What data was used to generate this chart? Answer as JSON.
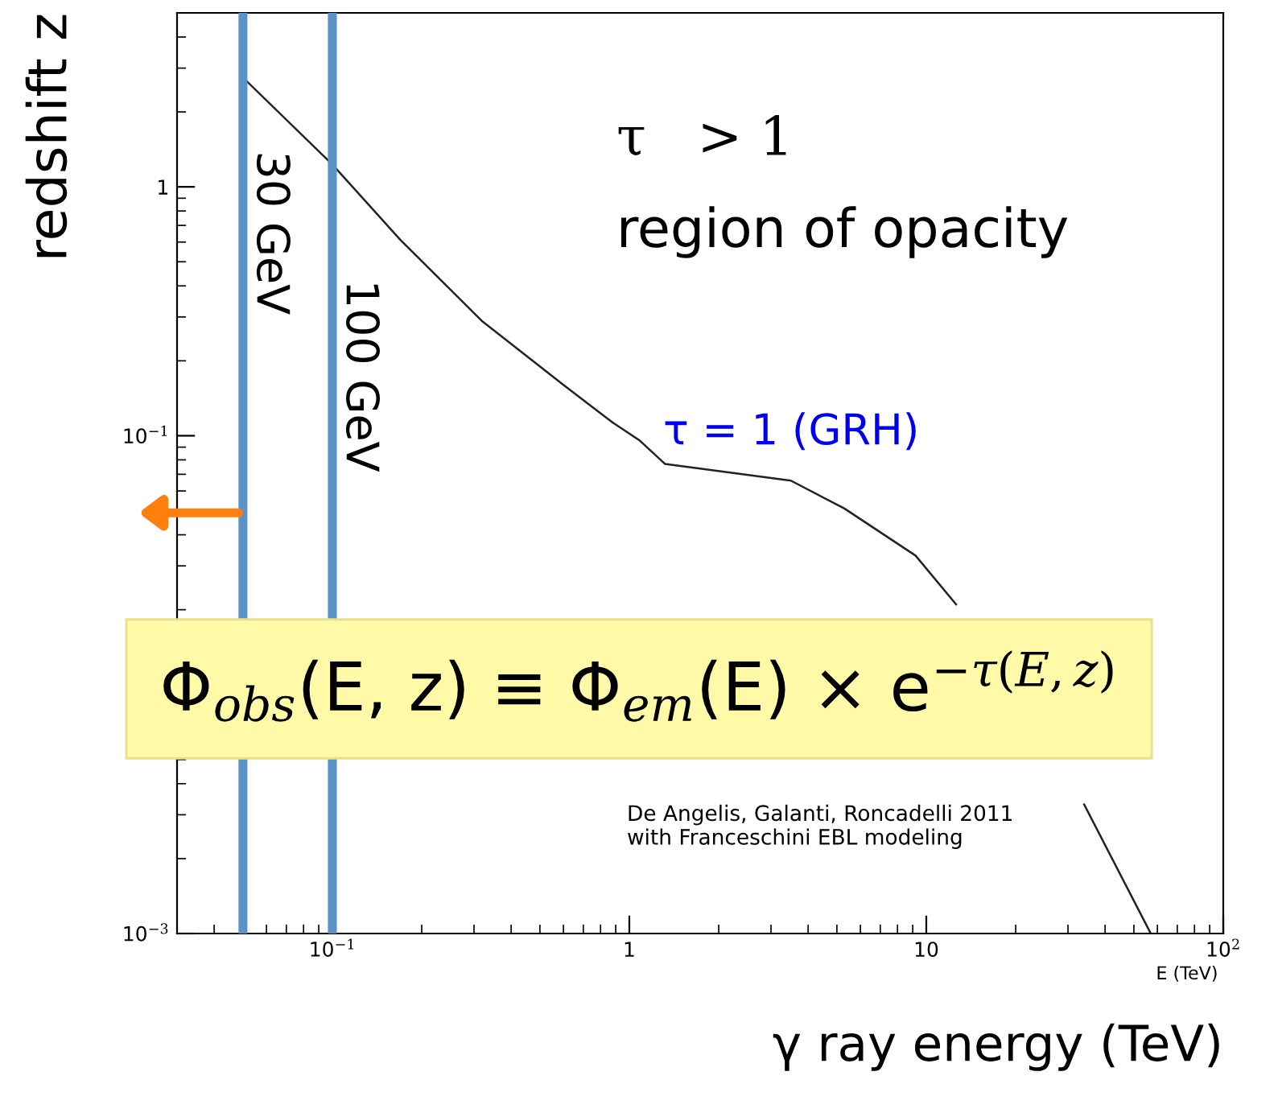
{
  "chart_data": {
    "type": "line",
    "xlabel": "γ ray energy (TeV)",
    "ylabel": "redshift z",
    "x": [
      0.05,
      0.1,
      0.17,
      0.318,
      0.6,
      0.87,
      1.08,
      1.32,
      3.5,
      5.3,
      9.2,
      12.6,
      20,
      34,
      57
    ],
    "series": [
      {
        "color": "#222222",
        "values": [
          2.75,
          1.23,
          0.61,
          0.29,
          0.16,
          0.114,
          0.096,
          0.077,
          0.066,
          0.051,
          0.033,
          0.021,
          null,
          0.0033,
          0.001
        ]
      }
    ],
    "log": "xy",
    "xlim": [
      0.03,
      100
    ],
    "ylim": [
      0.001,
      5
    ],
    "xticks": [
      {
        "value": 0.1,
        "label": "10$^{−1}$"
      },
      1,
      10,
      {
        "value": 100,
        "label": "10$^{2}$"
      }
    ],
    "yticks": [
      {
        "value": 0.001,
        "label": "10$^{−3}$"
      },
      {
        "value": 0.1,
        "label": "10$^{−1}$"
      },
      1
    ],
    "ref_lines": [
      {
        "axis": "x",
        "value": 0.05,
        "label": "30 GeV",
        "color": "#5b93c9"
      },
      {
        "axis": "x",
        "value": 0.1,
        "label": "100 GeV",
        "color": "#5b93c9"
      }
    ],
    "annotations": [
      "τ   > 1",
      "region of opacity",
      {
        "text": "τ = 1 (GRH)",
        "x": 1.3,
        "y": 0.085
      },
      "De Angelis, Galanti, Roncadelli 2011\nwith Franceschini EBL modeling",
      "E (TeV)",
      "Φ$_{obs}$(E, z) ≡ Φ$_{em}$(E) × e$^{−τ(E,z)}$"
    ],
    "grid": false,
    "legend": false,
    "marker": "none",
    "line_style": "solid"
  }
}
